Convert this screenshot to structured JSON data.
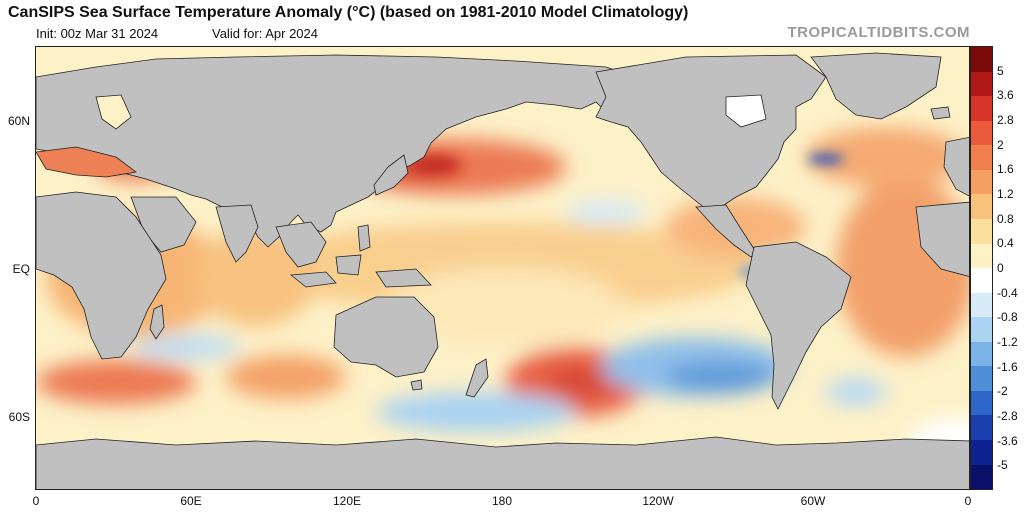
{
  "header": {
    "title": "CanSIPS Sea Surface Temperature Anomaly (°C) (based on 1981-2010 Model Climatology)",
    "init": "Init: 00z Mar 31 2024",
    "valid": "Valid for: Apr 2024",
    "brand": "TROPICALTIDBITS.COM"
  },
  "map": {
    "lat_labels": [
      "60N",
      "EQ",
      "60S"
    ],
    "lon_labels": [
      "0",
      "60E",
      "120E",
      "180",
      "120W",
      "60W",
      "0"
    ],
    "land_color": "#c0c0c0",
    "ocean_neutral_color": "#ffffff"
  },
  "colorbar": {
    "labels": [
      "5",
      "3.6",
      "2.8",
      "2",
      "1.6",
      "1.2",
      "0.8",
      "0.4",
      "0",
      "-0.4",
      "-0.8",
      "-1.2",
      "-1.6",
      "-2",
      "-2.8",
      "-3.6",
      "-5"
    ],
    "colors": [
      "#7a0a0a",
      "#b01818",
      "#d8352a",
      "#ea5a3c",
      "#f07f4e",
      "#f5a060",
      "#f8c27c",
      "#fbdf9c",
      "#fdf2c6",
      "#ffffff",
      "#d8ecf8",
      "#aad4f2",
      "#7cb3e6",
      "#4f8fd8",
      "#2f67c8",
      "#1c3fb0",
      "#0f2390",
      "#0a0f6a"
    ]
  }
}
